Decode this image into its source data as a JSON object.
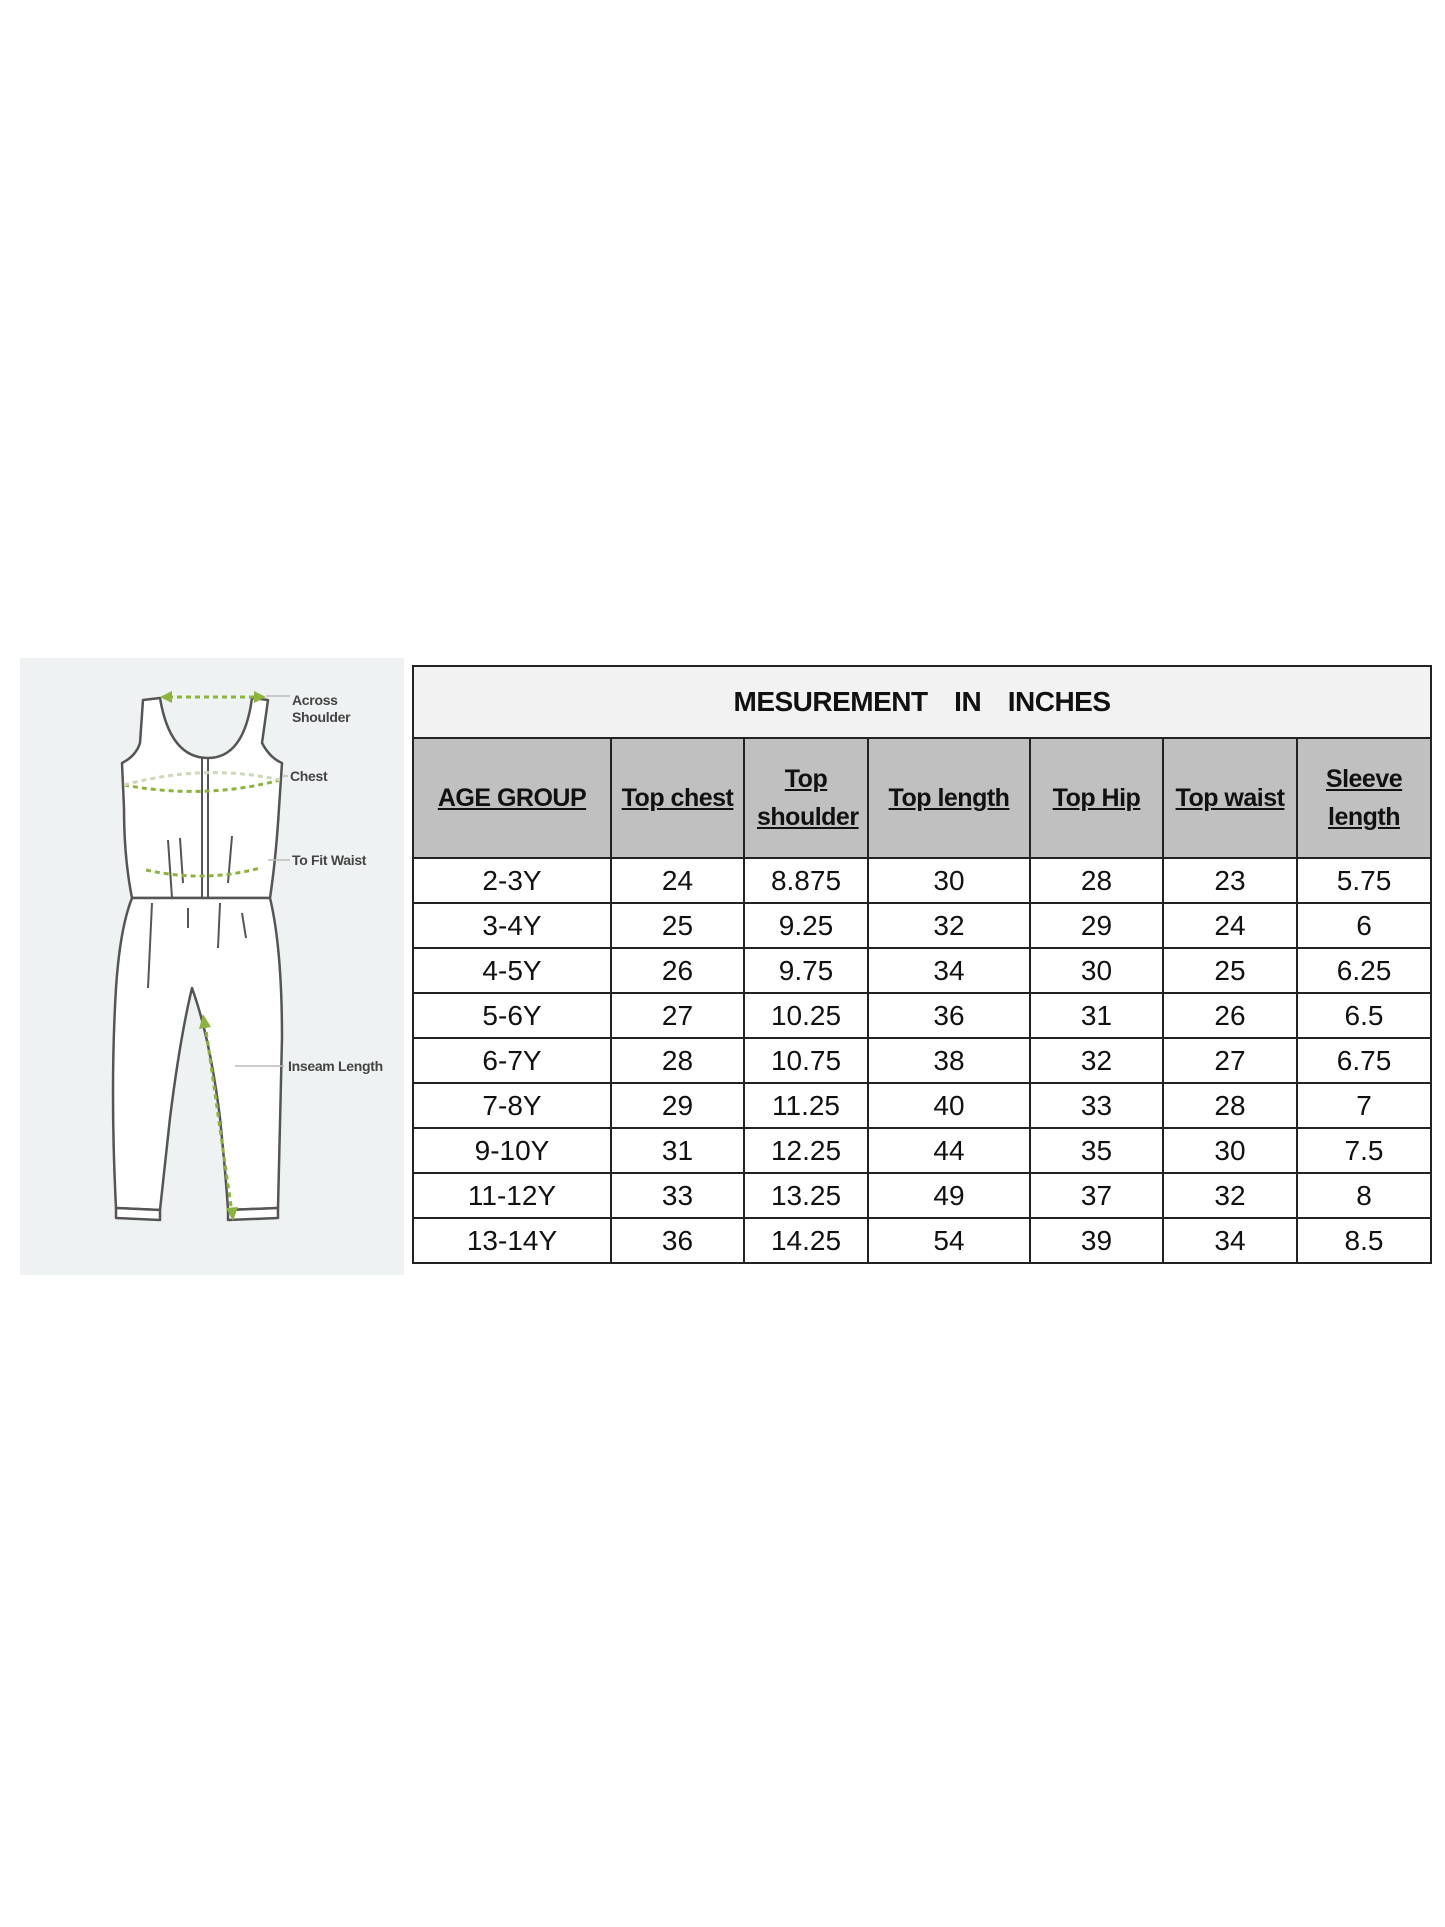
{
  "diagram": {
    "labels": {
      "across_shoulder": "Across Shoulder",
      "chest": "Chest",
      "waist": "To Fit Waist",
      "inseam": "Inseam Length"
    },
    "accent_color": "#8cb33c"
  },
  "table": {
    "title": "MESUREMENT  IN  INCHES",
    "headers": [
      "AGE GROUP",
      "Top chest",
      "Top shoulder",
      "Top length",
      "Top Hip",
      "Top waist",
      "Sleeve length"
    ],
    "rows": [
      [
        "2-3Y",
        "24",
        "8.875",
        "30",
        "28",
        "23",
        "5.75"
      ],
      [
        "3-4Y",
        "25",
        "9.25",
        "32",
        "29",
        "24",
        "6"
      ],
      [
        "4-5Y",
        "26",
        "9.75",
        "34",
        "30",
        "25",
        "6.25"
      ],
      [
        "5-6Y",
        "27",
        "10.25",
        "36",
        "31",
        "26",
        "6.5"
      ],
      [
        "6-7Y",
        "28",
        "10.75",
        "38",
        "32",
        "27",
        "6.75"
      ],
      [
        "7-8Y",
        "29",
        "11.25",
        "40",
        "33",
        "28",
        "7"
      ],
      [
        "9-10Y",
        "31",
        "12.25",
        "44",
        "35",
        "30",
        "7.5"
      ],
      [
        "11-12Y",
        "33",
        "13.25",
        "49",
        "37",
        "32",
        "8"
      ],
      [
        "13-14Y",
        "36",
        "14.25",
        "54",
        "39",
        "34",
        "8.5"
      ]
    ]
  }
}
